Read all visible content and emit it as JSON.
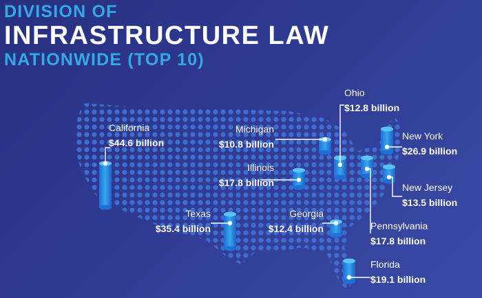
{
  "header": {
    "line1": "DIVISION OF",
    "line2": "INFRASTRUCTURE LAW",
    "line3": "NATIONWIDE (TOP 10)"
  },
  "colors": {
    "background": "#2f3a92",
    "accent": "#33a9e6",
    "dot": "#3f6ed1",
    "label": "#ffffff"
  },
  "states": [
    {
      "name": "California",
      "amount": "$44.6 billion",
      "value": 44.6
    },
    {
      "name": "Texas",
      "amount": "$35.4 billion",
      "value": 35.4
    },
    {
      "name": "New York",
      "amount": "$26.9 billion",
      "value": 26.9
    },
    {
      "name": "Florida",
      "amount": "$19.1 billion",
      "value": 19.1
    },
    {
      "name": "Illinois",
      "amount": "$17.8 billion",
      "value": 17.8
    },
    {
      "name": "Pennsylvania",
      "amount": "$17.8 billion",
      "value": 17.8
    },
    {
      "name": "New Jersey",
      "amount": "$13.5 billion",
      "value": 13.5
    },
    {
      "name": "Ohio",
      "amount": "$12.8 billion",
      "value": 12.8
    },
    {
      "name": "Georgia",
      "amount": "$12.4 billion",
      "value": 12.4
    },
    {
      "name": "Michigan",
      "amount": "$10.8 billion",
      "value": 10.8
    }
  ]
}
